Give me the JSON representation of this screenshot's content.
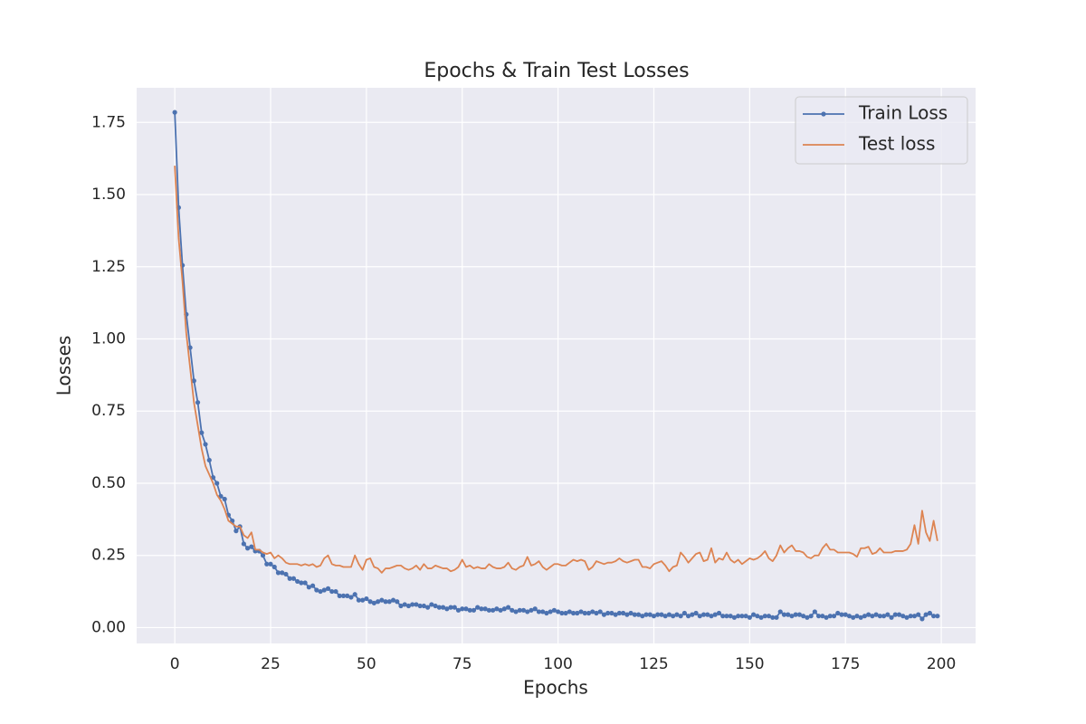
{
  "chart_data": {
    "type": "line",
    "title": "Epochs & Train Test Losses",
    "x_label": "Epochs",
    "y_label": "Losses",
    "x": [
      0,
      1,
      2,
      3,
      4,
      5,
      6,
      7,
      8,
      9,
      10,
      11,
      12,
      13,
      14,
      15,
      16,
      17,
      18,
      19,
      20,
      21,
      22,
      23,
      24,
      25,
      26,
      27,
      28,
      29,
      30,
      31,
      32,
      33,
      34,
      35,
      36,
      37,
      38,
      39,
      40,
      41,
      42,
      43,
      44,
      45,
      46,
      47,
      48,
      49,
      50,
      51,
      52,
      53,
      54,
      55,
      56,
      57,
      58,
      59,
      60,
      61,
      62,
      63,
      64,
      65,
      66,
      67,
      68,
      69,
      70,
      71,
      72,
      73,
      74,
      75,
      76,
      77,
      78,
      79,
      80,
      81,
      82,
      83,
      84,
      85,
      86,
      87,
      88,
      89,
      90,
      91,
      92,
      93,
      94,
      95,
      96,
      97,
      98,
      99,
      100,
      101,
      102,
      103,
      104,
      105,
      106,
      107,
      108,
      109,
      110,
      111,
      112,
      113,
      114,
      115,
      116,
      117,
      118,
      119,
      120,
      121,
      122,
      123,
      124,
      125,
      126,
      127,
      128,
      129,
      130,
      131,
      132,
      133,
      134,
      135,
      136,
      137,
      138,
      139,
      140,
      141,
      142,
      143,
      144,
      145,
      146,
      147,
      148,
      149,
      150,
      151,
      152,
      153,
      154,
      155,
      156,
      157,
      158,
      159,
      160,
      161,
      162,
      163,
      164,
      165,
      166,
      167,
      168,
      169,
      170,
      171,
      172,
      173,
      174,
      175,
      176,
      177,
      178,
      179,
      180,
      181,
      182,
      183,
      184,
      185,
      186,
      187,
      188,
      189,
      190,
      191,
      192,
      193,
      194,
      195,
      196,
      197,
      198,
      199
    ],
    "series": [
      {
        "name": "Train Loss",
        "color": "#4c72b0",
        "marker": "o",
        "values": [
          1.785,
          1.455,
          1.255,
          1.085,
          0.97,
          0.855,
          0.78,
          0.675,
          0.635,
          0.58,
          0.52,
          0.5,
          0.455,
          0.445,
          0.39,
          0.37,
          0.335,
          0.35,
          0.29,
          0.275,
          0.28,
          0.265,
          0.265,
          0.25,
          0.22,
          0.22,
          0.21,
          0.19,
          0.19,
          0.185,
          0.17,
          0.17,
          0.16,
          0.155,
          0.155,
          0.14,
          0.145,
          0.13,
          0.125,
          0.13,
          0.135,
          0.125,
          0.125,
          0.11,
          0.11,
          0.11,
          0.105,
          0.115,
          0.095,
          0.095,
          0.1,
          0.09,
          0.085,
          0.09,
          0.095,
          0.09,
          0.09,
          0.095,
          0.09,
          0.075,
          0.08,
          0.075,
          0.08,
          0.08,
          0.075,
          0.075,
          0.07,
          0.08,
          0.075,
          0.07,
          0.07,
          0.065,
          0.07,
          0.07,
          0.06,
          0.065,
          0.065,
          0.06,
          0.06,
          0.07,
          0.065,
          0.065,
          0.06,
          0.06,
          0.065,
          0.06,
          0.065,
          0.07,
          0.06,
          0.055,
          0.06,
          0.06,
          0.055,
          0.06,
          0.065,
          0.055,
          0.055,
          0.05,
          0.055,
          0.06,
          0.055,
          0.05,
          0.05,
          0.055,
          0.05,
          0.05,
          0.055,
          0.05,
          0.05,
          0.055,
          0.05,
          0.055,
          0.045,
          0.05,
          0.05,
          0.045,
          0.05,
          0.05,
          0.045,
          0.05,
          0.045,
          0.045,
          0.04,
          0.045,
          0.045,
          0.04,
          0.045,
          0.045,
          0.04,
          0.045,
          0.04,
          0.045,
          0.04,
          0.05,
          0.04,
          0.045,
          0.05,
          0.04,
          0.045,
          0.045,
          0.04,
          0.045,
          0.05,
          0.04,
          0.04,
          0.04,
          0.035,
          0.04,
          0.04,
          0.04,
          0.035,
          0.045,
          0.04,
          0.035,
          0.04,
          0.04,
          0.035,
          0.035,
          0.055,
          0.045,
          0.045,
          0.04,
          0.045,
          0.045,
          0.04,
          0.035,
          0.04,
          0.055,
          0.04,
          0.04,
          0.035,
          0.04,
          0.04,
          0.05,
          0.045,
          0.045,
          0.04,
          0.035,
          0.04,
          0.035,
          0.04,
          0.045,
          0.04,
          0.045,
          0.04,
          0.04,
          0.045,
          0.035,
          0.045,
          0.045,
          0.04,
          0.035,
          0.04,
          0.04,
          0.045,
          0.03,
          0.045,
          0.05,
          0.04,
          0.04
        ]
      },
      {
        "name": "Test loss",
        "color": "#dd8452",
        "values": [
          1.6,
          1.35,
          1.2,
          1.02,
          0.9,
          0.78,
          0.7,
          0.62,
          0.56,
          0.53,
          0.5,
          0.46,
          0.44,
          0.41,
          0.37,
          0.36,
          0.35,
          0.35,
          0.32,
          0.31,
          0.33,
          0.27,
          0.27,
          0.26,
          0.255,
          0.26,
          0.24,
          0.25,
          0.24,
          0.225,
          0.22,
          0.22,
          0.22,
          0.215,
          0.22,
          0.215,
          0.22,
          0.21,
          0.215,
          0.24,
          0.25,
          0.22,
          0.215,
          0.215,
          0.21,
          0.21,
          0.21,
          0.25,
          0.22,
          0.2,
          0.235,
          0.24,
          0.21,
          0.205,
          0.19,
          0.205,
          0.205,
          0.21,
          0.215,
          0.215,
          0.205,
          0.2,
          0.205,
          0.215,
          0.2,
          0.22,
          0.205,
          0.205,
          0.215,
          0.21,
          0.205,
          0.205,
          0.195,
          0.2,
          0.21,
          0.235,
          0.21,
          0.215,
          0.205,
          0.21,
          0.205,
          0.205,
          0.22,
          0.21,
          0.205,
          0.205,
          0.21,
          0.225,
          0.205,
          0.2,
          0.21,
          0.215,
          0.245,
          0.215,
          0.22,
          0.23,
          0.21,
          0.2,
          0.21,
          0.22,
          0.22,
          0.215,
          0.215,
          0.225,
          0.235,
          0.23,
          0.235,
          0.23,
          0.2,
          0.21,
          0.23,
          0.225,
          0.22,
          0.225,
          0.225,
          0.23,
          0.24,
          0.23,
          0.225,
          0.23,
          0.235,
          0.235,
          0.21,
          0.21,
          0.205,
          0.22,
          0.225,
          0.23,
          0.215,
          0.195,
          0.21,
          0.215,
          0.26,
          0.245,
          0.225,
          0.24,
          0.255,
          0.26,
          0.23,
          0.235,
          0.275,
          0.225,
          0.24,
          0.235,
          0.26,
          0.235,
          0.225,
          0.235,
          0.22,
          0.23,
          0.24,
          0.235,
          0.24,
          0.25,
          0.265,
          0.24,
          0.23,
          0.25,
          0.285,
          0.26,
          0.275,
          0.285,
          0.265,
          0.265,
          0.26,
          0.245,
          0.24,
          0.25,
          0.25,
          0.275,
          0.29,
          0.27,
          0.27,
          0.26,
          0.26,
          0.26,
          0.26,
          0.255,
          0.245,
          0.275,
          0.275,
          0.28,
          0.255,
          0.26,
          0.275,
          0.26,
          0.26,
          0.26,
          0.265,
          0.265,
          0.265,
          0.27,
          0.29,
          0.355,
          0.29,
          0.405,
          0.33,
          0.3,
          0.37,
          0.3
        ]
      }
    ],
    "xlim": [
      -9.95,
      208.95
    ],
    "xticks": [
      0,
      25,
      50,
      75,
      100,
      125,
      150,
      175,
      200
    ],
    "ylim": [
      -0.055,
      1.87
    ],
    "yticks": [
      {
        "value": 0,
        "label": "0.00"
      },
      0.25,
      {
        "value": 0.5,
        "label": "0.50"
      },
      0.75,
      {
        "value": 1,
        "label": "1.00"
      },
      1.25,
      {
        "value": 1.5,
        "label": "1.50"
      },
      1.75
    ],
    "grid": true,
    "legend": "upper right"
  }
}
